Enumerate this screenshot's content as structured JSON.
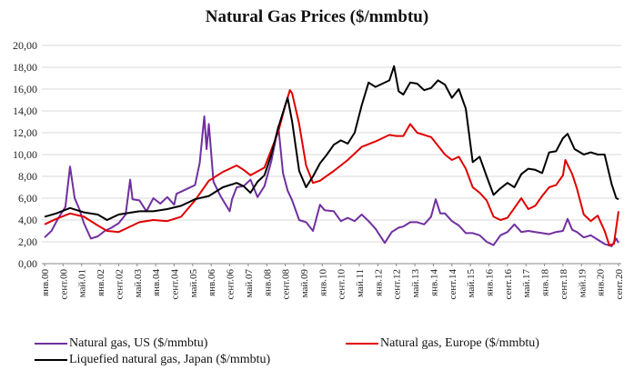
{
  "chart_data": {
    "type": "line",
    "title": "Natural Gas Prices ($/mmbtu)",
    "xlabel": "",
    "ylabel": "",
    "ylim": [
      0,
      20
    ],
    "y_ticks": [
      "0,00",
      "2,00",
      "4,00",
      "6,00",
      "8,00",
      "10,00",
      "12,00",
      "14,00",
      "16,00",
      "18,00",
      "20,00"
    ],
    "x_range": [
      "2000-01",
      "2020-09"
    ],
    "x_tick_labels": [
      "янв.00",
      "сент.00",
      "май.01",
      "янв.02",
      "сент.02",
      "май.03",
      "янв.04",
      "сент.04",
      "май.05",
      "янв.06",
      "сент.06",
      "май.07",
      "янв.08",
      "сент.08",
      "май.09",
      "янв.10",
      "сент.10",
      "май.11",
      "янв.12",
      "сент.12",
      "май.13",
      "янв.14",
      "сент.14",
      "май.15",
      "янв.16",
      "сент.16",
      "май.17",
      "янв.18",
      "сент.18",
      "май.19",
      "янв.20",
      "сент.20"
    ],
    "grid": "horizontal",
    "legend_position": "bottom",
    "series": [
      {
        "name": "Natural gas, US ($/mmbtu)",
        "color": "#7030a0",
        "points": [
          [
            "2000-01",
            2.4
          ],
          [
            "2000-04",
            3.0
          ],
          [
            "2000-07",
            4.2
          ],
          [
            "2000-10",
            5.2
          ],
          [
            "2000-12",
            8.9
          ],
          [
            "2001-02",
            6.0
          ],
          [
            "2001-04",
            5.0
          ],
          [
            "2001-06",
            3.7
          ],
          [
            "2001-09",
            2.3
          ],
          [
            "2001-12",
            2.5
          ],
          [
            "2002-03",
            3.0
          ],
          [
            "2002-06",
            3.3
          ],
          [
            "2002-09",
            3.7
          ],
          [
            "2002-12",
            4.5
          ],
          [
            "2003-02",
            7.7
          ],
          [
            "2003-03",
            5.9
          ],
          [
            "2003-06",
            5.8
          ],
          [
            "2003-09",
            4.8
          ],
          [
            "2003-12",
            6.0
          ],
          [
            "2004-03",
            5.5
          ],
          [
            "2004-06",
            6.1
          ],
          [
            "2004-09",
            5.4
          ],
          [
            "2004-10",
            6.4
          ],
          [
            "2004-12",
            6.6
          ],
          [
            "2005-03",
            6.9
          ],
          [
            "2005-06",
            7.2
          ],
          [
            "2005-08",
            9.2
          ],
          [
            "2005-10",
            13.5
          ],
          [
            "2005-11",
            10.5
          ],
          [
            "2005-12",
            12.8
          ],
          [
            "2006-02",
            7.5
          ],
          [
            "2006-05",
            6.2
          ],
          [
            "2006-09",
            4.8
          ],
          [
            "2006-10",
            5.9
          ],
          [
            "2006-12",
            7.0
          ],
          [
            "2007-03",
            7.1
          ],
          [
            "2007-06",
            7.7
          ],
          [
            "2007-09",
            6.1
          ],
          [
            "2007-12",
            7.1
          ],
          [
            "2008-03",
            9.4
          ],
          [
            "2008-06",
            12.6
          ],
          [
            "2008-08",
            8.3
          ],
          [
            "2008-10",
            6.7
          ],
          [
            "2008-12",
            5.8
          ],
          [
            "2009-03",
            4.0
          ],
          [
            "2009-06",
            3.8
          ],
          [
            "2009-09",
            3.0
          ],
          [
            "2009-12",
            5.4
          ],
          [
            "2010-02",
            4.9
          ],
          [
            "2010-06",
            4.8
          ],
          [
            "2010-09",
            3.9
          ],
          [
            "2010-12",
            4.2
          ],
          [
            "2011-03",
            3.9
          ],
          [
            "2011-06",
            4.5
          ],
          [
            "2011-09",
            3.9
          ],
          [
            "2011-12",
            3.2
          ],
          [
            "2012-04",
            1.9
          ],
          [
            "2012-07",
            2.9
          ],
          [
            "2012-10",
            3.3
          ],
          [
            "2012-12",
            3.4
          ],
          [
            "2013-03",
            3.8
          ],
          [
            "2013-06",
            3.8
          ],
          [
            "2013-09",
            3.6
          ],
          [
            "2013-12",
            4.3
          ],
          [
            "2014-02",
            5.9
          ],
          [
            "2014-04",
            4.6
          ],
          [
            "2014-06",
            4.6
          ],
          [
            "2014-09",
            3.9
          ],
          [
            "2014-12",
            3.5
          ],
          [
            "2015-03",
            2.8
          ],
          [
            "2015-06",
            2.8
          ],
          [
            "2015-09",
            2.6
          ],
          [
            "2015-12",
            2.0
          ],
          [
            "2016-03",
            1.7
          ],
          [
            "2016-06",
            2.6
          ],
          [
            "2016-09",
            2.9
          ],
          [
            "2016-12",
            3.6
          ],
          [
            "2017-03",
            2.9
          ],
          [
            "2017-06",
            3.0
          ],
          [
            "2017-09",
            2.9
          ],
          [
            "2017-12",
            2.8
          ],
          [
            "2018-03",
            2.7
          ],
          [
            "2018-06",
            2.9
          ],
          [
            "2018-09",
            3.0
          ],
          [
            "2018-11",
            4.1
          ],
          [
            "2019-01",
            3.1
          ],
          [
            "2019-03",
            2.9
          ],
          [
            "2019-06",
            2.4
          ],
          [
            "2019-09",
            2.6
          ],
          [
            "2019-12",
            2.2
          ],
          [
            "2020-03",
            1.8
          ],
          [
            "2020-06",
            1.6
          ],
          [
            "2020-08",
            2.3
          ],
          [
            "2020-09",
            1.9
          ]
        ]
      },
      {
        "name": "Natural gas, Europe ($/mmbtu)",
        "color": "#e00000",
        "points": [
          [
            "2000-01",
            3.6
          ],
          [
            "2000-06",
            4.1
          ],
          [
            "2000-12",
            4.6
          ],
          [
            "2001-06",
            4.3
          ],
          [
            "2001-12",
            3.5
          ],
          [
            "2002-04",
            3.0
          ],
          [
            "2002-09",
            2.9
          ],
          [
            "2002-12",
            3.2
          ],
          [
            "2003-06",
            3.8
          ],
          [
            "2003-12",
            4.0
          ],
          [
            "2004-06",
            3.9
          ],
          [
            "2004-12",
            4.3
          ],
          [
            "2005-06",
            5.8
          ],
          [
            "2005-12",
            7.6
          ],
          [
            "2006-06",
            8.4
          ],
          [
            "2006-12",
            9.0
          ],
          [
            "2007-03",
            8.6
          ],
          [
            "2007-06",
            8.1
          ],
          [
            "2007-12",
            8.8
          ],
          [
            "2008-06",
            12.1
          ],
          [
            "2008-09",
            14.5
          ],
          [
            "2008-11",
            15.9
          ],
          [
            "2008-12",
            15.6
          ],
          [
            "2009-03",
            12.8
          ],
          [
            "2009-06",
            9.0
          ],
          [
            "2009-09",
            7.4
          ],
          [
            "2009-12",
            7.6
          ],
          [
            "2010-06",
            8.5
          ],
          [
            "2010-12",
            9.5
          ],
          [
            "2011-06",
            10.7
          ],
          [
            "2011-12",
            11.2
          ],
          [
            "2012-06",
            11.8
          ],
          [
            "2012-09",
            11.7
          ],
          [
            "2012-12",
            11.7
          ],
          [
            "2013-03",
            12.8
          ],
          [
            "2013-06",
            12.0
          ],
          [
            "2013-12",
            11.6
          ],
          [
            "2014-06",
            10.0
          ],
          [
            "2014-09",
            9.5
          ],
          [
            "2014-12",
            9.8
          ],
          [
            "2015-03",
            8.7
          ],
          [
            "2015-06",
            7.0
          ],
          [
            "2015-09",
            6.5
          ],
          [
            "2015-12",
            5.8
          ],
          [
            "2016-03",
            4.3
          ],
          [
            "2016-06",
            4.0
          ],
          [
            "2016-09",
            4.2
          ],
          [
            "2016-12",
            5.1
          ],
          [
            "2017-03",
            6.0
          ],
          [
            "2017-06",
            5.0
          ],
          [
            "2017-09",
            5.3
          ],
          [
            "2017-12",
            6.2
          ],
          [
            "2018-03",
            7.0
          ],
          [
            "2018-06",
            7.2
          ],
          [
            "2018-09",
            8.1
          ],
          [
            "2018-10",
            9.5
          ],
          [
            "2019-01",
            8.2
          ],
          [
            "2019-03",
            6.9
          ],
          [
            "2019-06",
            4.5
          ],
          [
            "2019-09",
            3.9
          ],
          [
            "2019-12",
            4.4
          ],
          [
            "2020-03",
            3.0
          ],
          [
            "2020-05",
            1.7
          ],
          [
            "2020-07",
            1.8
          ],
          [
            "2020-09",
            4.8
          ]
        ]
      },
      {
        "name": "Liquefied natural gas, Japan ($/mmbtu)",
        "color": "#000000",
        "points": [
          [
            "2000-01",
            4.3
          ],
          [
            "2000-06",
            4.6
          ],
          [
            "2000-12",
            5.1
          ],
          [
            "2001-06",
            4.7
          ],
          [
            "2001-12",
            4.5
          ],
          [
            "2002-04",
            4.0
          ],
          [
            "2002-09",
            4.5
          ],
          [
            "2002-12",
            4.6
          ],
          [
            "2003-06",
            4.8
          ],
          [
            "2003-12",
            4.8
          ],
          [
            "2004-06",
            5.0
          ],
          [
            "2004-12",
            5.3
          ],
          [
            "2005-06",
            5.9
          ],
          [
            "2005-12",
            6.2
          ],
          [
            "2006-06",
            7.0
          ],
          [
            "2006-12",
            7.4
          ],
          [
            "2007-03",
            7.1
          ],
          [
            "2007-06",
            6.5
          ],
          [
            "2007-09",
            7.5
          ],
          [
            "2007-12",
            8.1
          ],
          [
            "2008-03",
            10.0
          ],
          [
            "2008-06",
            12.5
          ],
          [
            "2008-10",
            15.2
          ],
          [
            "2008-12",
            13.0
          ],
          [
            "2009-03",
            8.5
          ],
          [
            "2009-06",
            7.0
          ],
          [
            "2009-09",
            8.0
          ],
          [
            "2009-12",
            9.2
          ],
          [
            "2010-03",
            10.0
          ],
          [
            "2010-06",
            10.9
          ],
          [
            "2010-09",
            11.3
          ],
          [
            "2010-12",
            11.0
          ],
          [
            "2011-03",
            12.0
          ],
          [
            "2011-06",
            14.5
          ],
          [
            "2011-09",
            16.6
          ],
          [
            "2011-12",
            16.2
          ],
          [
            "2012-03",
            16.5
          ],
          [
            "2012-06",
            16.8
          ],
          [
            "2012-08",
            18.1
          ],
          [
            "2012-10",
            15.8
          ],
          [
            "2012-12",
            15.5
          ],
          [
            "2013-03",
            16.6
          ],
          [
            "2013-06",
            16.5
          ],
          [
            "2013-09",
            15.9
          ],
          [
            "2013-12",
            16.1
          ],
          [
            "2014-03",
            16.8
          ],
          [
            "2014-06",
            16.4
          ],
          [
            "2014-09",
            15.2
          ],
          [
            "2014-12",
            16.0
          ],
          [
            "2015-03",
            14.2
          ],
          [
            "2015-06",
            9.3
          ],
          [
            "2015-09",
            9.8
          ],
          [
            "2015-12",
            8.0
          ],
          [
            "2016-03",
            6.3
          ],
          [
            "2016-06",
            6.9
          ],
          [
            "2016-09",
            7.4
          ],
          [
            "2016-12",
            7.0
          ],
          [
            "2017-03",
            8.2
          ],
          [
            "2017-06",
            8.7
          ],
          [
            "2017-09",
            8.6
          ],
          [
            "2017-12",
            8.3
          ],
          [
            "2018-03",
            10.2
          ],
          [
            "2018-06",
            10.3
          ],
          [
            "2018-09",
            11.5
          ],
          [
            "2018-11",
            11.9
          ],
          [
            "2019-02",
            10.5
          ],
          [
            "2019-06",
            10.0
          ],
          [
            "2019-09",
            10.2
          ],
          [
            "2019-12",
            10.0
          ],
          [
            "2020-03",
            10.0
          ],
          [
            "2020-06",
            7.3
          ],
          [
            "2020-08",
            6.0
          ],
          [
            "2020-09",
            5.9
          ]
        ]
      }
    ]
  }
}
